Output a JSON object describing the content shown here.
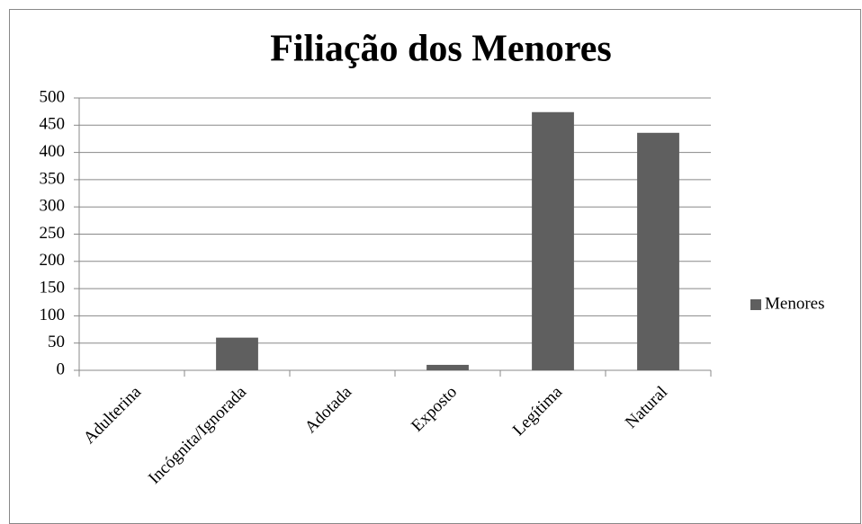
{
  "chart_data": {
    "type": "bar",
    "title": "Filiação dos Menores",
    "categories": [
      "Adulterina",
      "Incógnita/Ignorada",
      "Adotada",
      "Exposto",
      "Legítima",
      "Natural"
    ],
    "series": [
      {
        "name": "Menores",
        "color": "#5f5f5f",
        "values": [
          0,
          60,
          0,
          10,
          474,
          436
        ]
      }
    ],
    "ylim": [
      0,
      500
    ],
    "yticks": [
      0,
      50,
      100,
      150,
      200,
      250,
      300,
      350,
      400,
      450,
      500
    ],
    "grid": true,
    "legend": "right"
  }
}
